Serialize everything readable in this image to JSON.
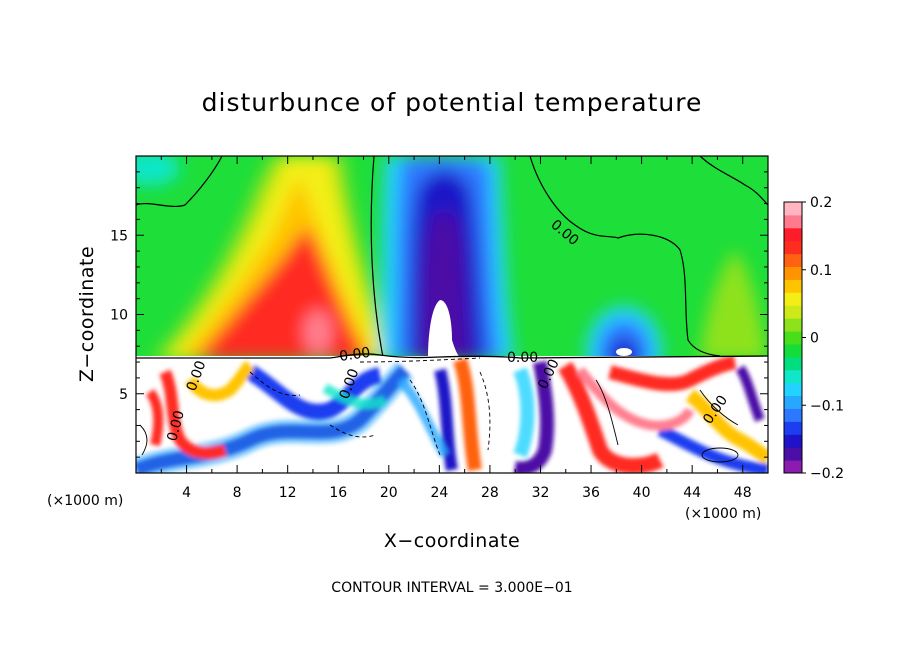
{
  "chart_data": {
    "type": "heatmap",
    "title": "disturbunce of potential temperature",
    "xlabel": "X−coordinate",
    "ylabel": "Z−coordinate",
    "x_unit_left": "(×1000 m)",
    "x_unit_right": "(×1000 m)",
    "xlim": [
      0,
      50
    ],
    "ylim": [
      0,
      20
    ],
    "x_ticks": [
      4,
      8,
      12,
      16,
      20,
      24,
      28,
      32,
      36,
      40,
      44,
      48
    ],
    "y_ticks": [
      5,
      10,
      15
    ],
    "colorbar": {
      "min": -0.2,
      "max": 0.2,
      "tick_labels": [
        "0.2",
        "0.1",
        "0",
        "−0.1",
        "−0.2"
      ],
      "tick_values": [
        0.2,
        0.1,
        0,
        -0.1,
        -0.2
      ],
      "colors": [
        "#8e1bb0",
        "#4b0fa6",
        "#1f12c8",
        "#1d3ef0",
        "#2e78ff",
        "#27a7ff",
        "#22d3ff",
        "#10e6c8",
        "#00de80",
        "#14dc38",
        "#49de1a",
        "#8ee21d",
        "#cdea18",
        "#f4ee16",
        "#ffc400",
        "#ff9400",
        "#ff6210",
        "#ff2c20",
        "#ff1c2a",
        "#ff7a8c",
        "#ffb6c0"
      ]
    },
    "contour_labels": [
      "0.00",
      "0.00",
      "0.00",
      "0.00",
      "0.00",
      "0.00",
      "0.00",
      "0.00"
    ],
    "features": [
      {
        "kind": "warm_plume",
        "x_center": 13.5,
        "z_bottom": 7.5,
        "z_top": 20,
        "peak": 0.2
      },
      {
        "kind": "cold_plume",
        "x_center": 24.5,
        "z_bottom": 7.5,
        "z_top": 20,
        "peak": -0.2
      },
      {
        "kind": "cold_dome",
        "x_center": 38.8,
        "z_bottom": 7.5,
        "z_top": 10.5,
        "peak": -0.2
      },
      {
        "kind": "warm_lobe",
        "x_center": 48,
        "z_bottom": 7.5,
        "z_top": 14,
        "peak": 0.07
      }
    ],
    "footnote": "CONTOUR INTERVAL = 3.000E−01"
  }
}
